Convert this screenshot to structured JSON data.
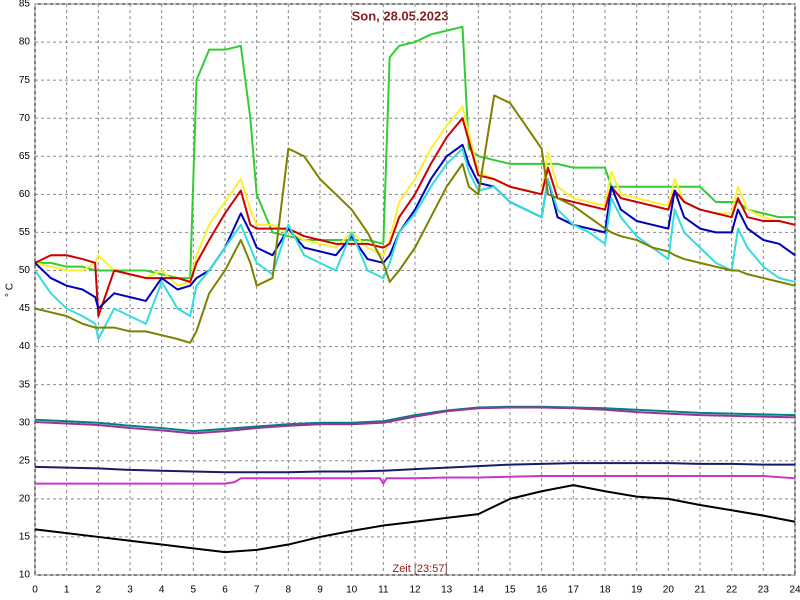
{
  "chart_data": {
    "type": "line",
    "title": "Son, 28.05.2023",
    "y_label": "° C",
    "x_label": "Zeit [23:57]",
    "xlim": [
      0,
      24
    ],
    "xticks": [
      0,
      1,
      2,
      3,
      4,
      5,
      6,
      7,
      8,
      9,
      10,
      11,
      12,
      13,
      14,
      15,
      16,
      17,
      18,
      19,
      20,
      21,
      22,
      23,
      24
    ],
    "ylim": [
      10,
      85
    ],
    "yticks": [
      10,
      15,
      20,
      25,
      30,
      35,
      40,
      45,
      50,
      55,
      60,
      65,
      70,
      75,
      80,
      85
    ],
    "grid": true,
    "x": [
      0,
      0.5,
      1,
      1.5,
      1.9,
      2,
      2.5,
      3,
      3.5,
      4,
      4.5,
      4.9,
      5.1,
      5.5,
      6,
      6.5,
      6.8,
      7,
      7.5,
      8,
      8.5,
      9,
      9.5,
      10,
      10.5,
      11,
      11.2,
      11.5,
      12,
      12.5,
      13,
      13.5,
      13.7,
      14,
      14.5,
      15,
      15.5,
      16,
      16.2,
      16.5,
      17,
      17.5,
      18,
      18.2,
      18.5,
      19,
      19.5,
      20,
      20.2,
      20.5,
      21,
      21.5,
      22,
      22.2,
      22.5,
      23,
      23.5,
      24
    ],
    "series": [
      {
        "color": "#33cc33",
        "values": [
          51,
          51,
          50.5,
          50.5,
          50,
          50,
          50,
          50,
          50,
          49.5,
          49,
          49,
          75,
          79,
          79,
          79.5,
          70,
          60,
          55,
          54.5,
          54,
          54,
          54,
          54,
          54,
          53.5,
          78,
          79.5,
          80,
          81,
          81.5,
          82,
          66,
          65,
          64.5,
          64,
          64,
          64,
          64,
          64,
          63.5,
          63.5,
          63.5,
          61,
          61,
          61,
          61,
          61,
          61,
          61,
          61,
          59,
          59,
          59,
          58,
          57.5,
          57,
          57
        ]
      },
      {
        "color": "#ffee33",
        "values": [
          51,
          50.5,
          50,
          50,
          51,
          52,
          50,
          49.5,
          49,
          50,
          48,
          48.5,
          52,
          56,
          59,
          62,
          58,
          56,
          56,
          55,
          54,
          53.5,
          53,
          55,
          53,
          52,
          54,
          59,
          62,
          66,
          69,
          71.5,
          68,
          63,
          62,
          61,
          60.5,
          60,
          65.5,
          61,
          59.5,
          59,
          58.5,
          63,
          60,
          59.5,
          59,
          58.5,
          62,
          59,
          58,
          57.5,
          57.5,
          61,
          58,
          57,
          56.5,
          56
        ]
      },
      {
        "color": "#cc0000",
        "values": [
          51,
          52,
          52,
          51.5,
          51,
          44,
          50,
          49.5,
          49,
          49,
          49,
          48.5,
          51,
          54,
          57.5,
          60.5,
          56,
          55.5,
          55.5,
          55.5,
          54.5,
          54,
          53.5,
          53.5,
          53.5,
          53,
          53.5,
          57,
          60,
          64,
          67.5,
          70,
          67,
          62.5,
          62,
          61,
          60.5,
          60,
          63.5,
          59.5,
          59,
          58.5,
          58,
          61,
          59.5,
          59,
          58.5,
          58,
          60.5,
          59,
          58,
          57.5,
          57,
          59.5,
          57,
          56.5,
          56.5,
          56
        ]
      },
      {
        "color": "#0000bb",
        "values": [
          51,
          49,
          48,
          47.5,
          46.5,
          45,
          47,
          46.5,
          46,
          49,
          47.5,
          48,
          49,
          50,
          53,
          57.5,
          55,
          53,
          52,
          55.5,
          53,
          52.5,
          52,
          54.5,
          51.5,
          51,
          52,
          55,
          58,
          62,
          65,
          66.5,
          64,
          61.5,
          61,
          59,
          58,
          57,
          62,
          57,
          56,
          55.5,
          55,
          61,
          58,
          56.5,
          56,
          55.5,
          60.5,
          57,
          55.5,
          55,
          55,
          58,
          55.5,
          54,
          53.5,
          52
        ]
      },
      {
        "color": "#33dddd",
        "values": [
          50,
          47,
          45,
          44,
          43,
          41,
          45,
          44,
          43,
          48.5,
          45,
          44,
          48,
          50,
          53,
          56,
          53,
          51,
          49.5,
          56,
          52,
          51,
          50,
          55,
          50,
          49,
          51,
          55,
          57.5,
          61,
          64,
          66,
          63,
          60.5,
          61,
          59,
          58,
          57,
          62,
          58,
          56,
          55,
          53.5,
          59.5,
          57,
          54.5,
          53,
          51.5,
          58,
          55,
          53,
          51,
          50,
          55.5,
          53,
          50.5,
          49,
          48.5
        ]
      },
      {
        "color": "#808000",
        "values": [
          45,
          44.5,
          44,
          43,
          42.5,
          42.5,
          42.5,
          42,
          42,
          41.5,
          41,
          40.5,
          42,
          47,
          50,
          54,
          51,
          48,
          49,
          66,
          65,
          62,
          60,
          58,
          55,
          51,
          48.5,
          50,
          53,
          57,
          61,
          64,
          61,
          60,
          73,
          72,
          69,
          66,
          60,
          59.5,
          58.5,
          57,
          55.5,
          55,
          54.5,
          54,
          53,
          52.5,
          52,
          51.5,
          51,
          50.5,
          50,
          50,
          49.5,
          49,
          48.5,
          48
        ]
      },
      {
        "color": "#008080",
        "x": [
          0,
          1,
          2,
          3,
          4,
          5,
          6,
          7,
          8,
          9,
          10,
          11,
          12,
          13,
          14,
          15,
          16,
          17,
          18,
          19,
          20,
          21,
          22,
          23,
          24
        ],
        "values": [
          30.4,
          30.2,
          30,
          29.6,
          29.3,
          28.9,
          29.2,
          29.5,
          29.8,
          30,
          30,
          30.2,
          31,
          31.6,
          32,
          32.1,
          32.1,
          32,
          31.9,
          31.7,
          31.5,
          31.3,
          31.2,
          31.1,
          31
        ]
      },
      {
        "color": "#993399",
        "x": [
          0,
          1,
          2,
          3,
          4,
          5,
          6,
          7,
          8,
          9,
          10,
          11,
          12,
          13,
          14,
          15,
          16,
          17,
          18,
          19,
          20,
          21,
          22,
          23,
          24
        ],
        "values": [
          30.1,
          29.9,
          29.7,
          29.3,
          29,
          28.6,
          28.9,
          29.3,
          29.6,
          29.8,
          29.8,
          30,
          30.8,
          31.5,
          31.9,
          32,
          32,
          31.9,
          31.7,
          31.4,
          31.2,
          31,
          30.9,
          30.8,
          30.7
        ]
      },
      {
        "color": "#1a1a66",
        "x": [
          0,
          1,
          2,
          3,
          4,
          5,
          6,
          7,
          8,
          9,
          10,
          11,
          12,
          13,
          14,
          15,
          16,
          17,
          18,
          19,
          20,
          21,
          22,
          23,
          24
        ],
        "values": [
          24.2,
          24.1,
          24,
          23.8,
          23.7,
          23.6,
          23.5,
          23.5,
          23.5,
          23.6,
          23.6,
          23.7,
          23.9,
          24.1,
          24.3,
          24.5,
          24.6,
          24.7,
          24.7,
          24.7,
          24.7,
          24.6,
          24.6,
          24.5,
          24.5
        ]
      },
      {
        "color": "#cc33cc",
        "x": [
          0,
          1,
          2,
          3,
          4,
          5,
          6,
          6.3,
          6.5,
          7,
          8,
          9,
          10,
          10.9,
          11,
          11.1,
          12,
          13,
          14,
          15,
          16,
          17,
          18,
          19,
          20,
          21,
          22,
          23,
          24
        ],
        "values": [
          22,
          22,
          22,
          22,
          22,
          22,
          22,
          22.2,
          22.7,
          22.7,
          22.7,
          22.7,
          22.7,
          22.7,
          22,
          22.7,
          22.7,
          22.8,
          22.8,
          22.9,
          23,
          23,
          23,
          23,
          23,
          23,
          23,
          23,
          22.7
        ]
      },
      {
        "color": "#000000",
        "x": [
          0,
          1,
          2,
          3,
          4,
          5,
          6,
          7,
          8,
          9,
          10,
          11,
          12,
          13,
          14,
          15,
          16,
          17,
          18,
          19,
          20,
          21,
          22,
          23,
          24
        ],
        "values": [
          16,
          15.5,
          15,
          14.5,
          14,
          13.5,
          13,
          13.3,
          14,
          15,
          15.8,
          16.5,
          17,
          17.5,
          18,
          20,
          21,
          21.8,
          21,
          20.3,
          20,
          19.2,
          18.5,
          17.8,
          17
        ]
      }
    ]
  }
}
